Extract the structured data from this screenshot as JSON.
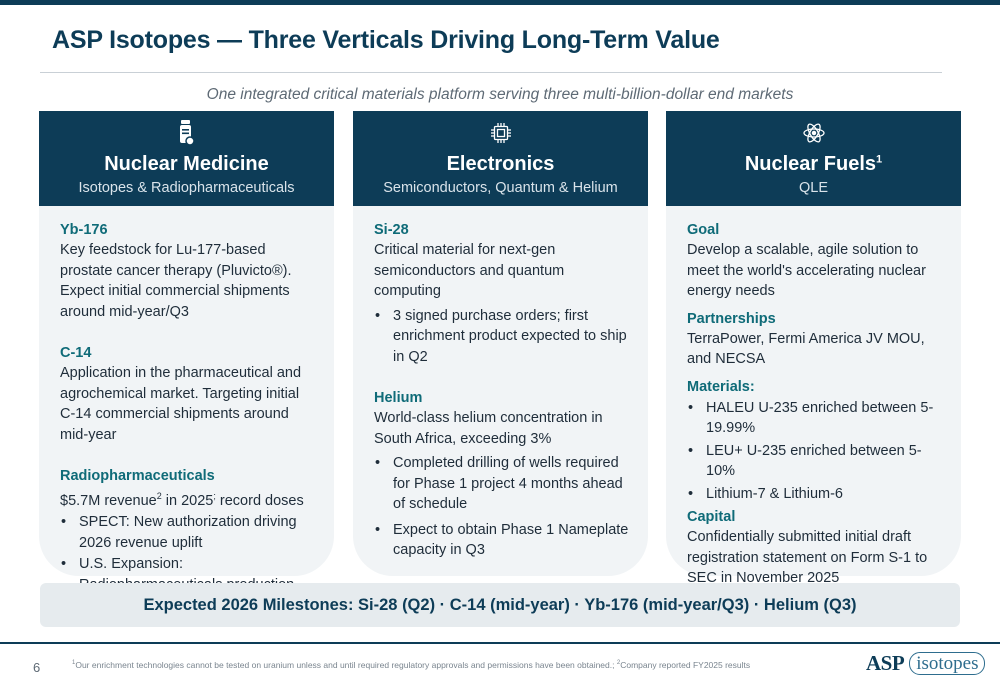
{
  "title": "ASP Isotopes — Three Verticals Driving Long-Term Value",
  "subtitle": "One integrated critical materials platform serving three multi-billion-dollar end markets",
  "columns": {
    "nuclear_medicine": {
      "icon": "medicine-vial-icon",
      "heading": "Nuclear Medicine",
      "subheading": "Isotopes & Radiopharmaceuticals",
      "yb176_title": "Yb-176",
      "yb176_text": "Key feedstock for Lu-177-based prostate cancer therapy (Pluvicto®). Expect initial commercial shipments around mid-year/Q3",
      "c14_title": "C-14",
      "c14_text": "Application in the pharmaceutical and agrochemical market. Targeting initial C-14 commercial shipments around mid-year",
      "radio_title": "Radiopharmaceuticals",
      "radio_text_a": "$5.7M revenue",
      "radio_sup_a": "2",
      "radio_text_b": " in 2025",
      "radio_sup_b": ";",
      "radio_text_c": " record doses",
      "radio_bullets": [
        "SPECT: New authorization driving 2026 revenue uplift",
        "U.S. Expansion: Radiopharmaceuticals production across multiple U.S. sites"
      ]
    },
    "electronics": {
      "icon": "chip-icon",
      "heading": "Electronics",
      "subheading": "Semiconductors, Quantum & Helium",
      "si28_title": "Si-28",
      "si28_text": "Critical material for next-gen semiconductors and quantum computing",
      "si28_bullets": [
        "3 signed purchase orders; first enrichment product expected to ship in Q2"
      ],
      "helium_title": "Helium",
      "helium_text": "World-class helium concentration in South Africa, exceeding 3%",
      "helium_bullets": [
        "Completed drilling of wells required for Phase 1 project 4 months ahead of schedule",
        "Expect to obtain Phase 1 Nameplate capacity in Q3"
      ]
    },
    "nuclear_fuels": {
      "icon": "atom-icon",
      "heading": "Nuclear Fuels",
      "heading_sup": "1",
      "subheading": "QLE",
      "goal_title": "Goal",
      "goal_text": "Develop a scalable, agile solution to meet the world's accelerating nuclear energy needs",
      "partnerships_title": "Partnerships",
      "partnerships_text": "TerraPower, Fermi America JV MOU, and NECSA",
      "materials_title": "Materials:",
      "materials_bullets": [
        "HALEU U-235 enriched between 5-19.99%",
        "LEU+ U-235 enriched between 5-10%",
        "Lithium-7 & Lithium-6"
      ],
      "capital_title": "Capital",
      "capital_text": "Confidentially submitted initial draft registration statement on Form S-1 to SEC in November 2025"
    }
  },
  "milestones": "Expected 2026 Milestones:  Si-28 (Q2)  ·  C-14 (mid-year)  ·  Yb-176 (mid-year/Q3)  · Helium (Q3)",
  "footer": {
    "page_number": "6",
    "fn1_mark": "1",
    "fn1_text": "Our enrichment technologies cannot be tested on uranium unless and until required regulatory approvals and permissions have been obtained.; ",
    "fn2_mark": "2",
    "fn2_text": "Company reported FY2025 results",
    "logo_a": "ASP",
    "logo_b": "isotopes"
  },
  "colors": {
    "navy": "#0d3c57",
    "teal_heading": "#0f6b78",
    "card_bg": "#f1f4f6",
    "milestone_bg": "#e6ebee"
  }
}
